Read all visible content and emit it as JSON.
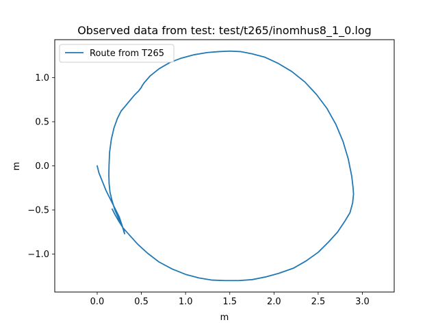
{
  "chart_data": {
    "type": "line",
    "title": "Observed data from test: test/t265/inomhus8_1_0.log",
    "xlabel": "m",
    "ylabel": "m",
    "xlim": [
      -0.48,
      3.36
    ],
    "ylim": [
      -1.43,
      1.43
    ],
    "xticks": [
      0.0,
      0.5,
      1.0,
      1.5,
      2.0,
      2.5,
      3.0
    ],
    "xtick_labels": [
      "0.0",
      "0.5",
      "1.0",
      "1.5",
      "2.0",
      "2.5",
      "3.0"
    ],
    "yticks": [
      -1.0,
      -0.5,
      0.0,
      0.5,
      1.0
    ],
    "ytick_labels": [
      "−1.0",
      "−0.5",
      "0.0",
      "0.5",
      "1.0"
    ],
    "grid": false,
    "legend_position": "top-left",
    "series": [
      {
        "name": "Route from T265",
        "color": "#1f77b4",
        "x": [
          0.0,
          0.02,
          0.06,
          0.1,
          0.15,
          0.2,
          0.25,
          0.28,
          0.31,
          0.3,
          0.27,
          0.24,
          0.2,
          0.17,
          0.145,
          0.135,
          0.132,
          0.134,
          0.14,
          0.16,
          0.19,
          0.23,
          0.27,
          0.32,
          0.37,
          0.42,
          0.47,
          0.5,
          0.51,
          0.53,
          0.6,
          0.7,
          0.82,
          0.95,
          1.1,
          1.25,
          1.38,
          1.5,
          1.62,
          1.75,
          1.9,
          2.05,
          2.2,
          2.35,
          2.48,
          2.6,
          2.7,
          2.78,
          2.84,
          2.88,
          2.895,
          2.9,
          2.89,
          2.86,
          2.8,
          2.72,
          2.62,
          2.5,
          2.36,
          2.22,
          2.05,
          1.9,
          1.75,
          1.6,
          1.45,
          1.3,
          1.15,
          1.0,
          0.85,
          0.7,
          0.57,
          0.46,
          0.37,
          0.29,
          0.24,
          0.2,
          0.17
        ],
        "y": [
          0.0,
          -0.08,
          -0.18,
          -0.28,
          -0.38,
          -0.48,
          -0.58,
          -0.67,
          -0.77,
          -0.72,
          -0.66,
          -0.59,
          -0.5,
          -0.4,
          -0.3,
          -0.2,
          -0.1,
          0.0,
          0.15,
          0.3,
          0.43,
          0.54,
          0.62,
          0.68,
          0.74,
          0.8,
          0.85,
          0.89,
          0.91,
          0.94,
          1.02,
          1.1,
          1.17,
          1.22,
          1.26,
          1.285,
          1.295,
          1.3,
          1.295,
          1.27,
          1.23,
          1.16,
          1.07,
          0.95,
          0.81,
          0.65,
          0.47,
          0.28,
          0.08,
          -0.12,
          -0.25,
          -0.32,
          -0.42,
          -0.53,
          -0.63,
          -0.75,
          -0.86,
          -0.98,
          -1.08,
          -1.16,
          -1.22,
          -1.26,
          -1.29,
          -1.3,
          -1.3,
          -1.295,
          -1.27,
          -1.23,
          -1.17,
          -1.09,
          -0.99,
          -0.89,
          -0.79,
          -0.7,
          -0.62,
          -0.55,
          -0.49
        ]
      }
    ]
  }
}
